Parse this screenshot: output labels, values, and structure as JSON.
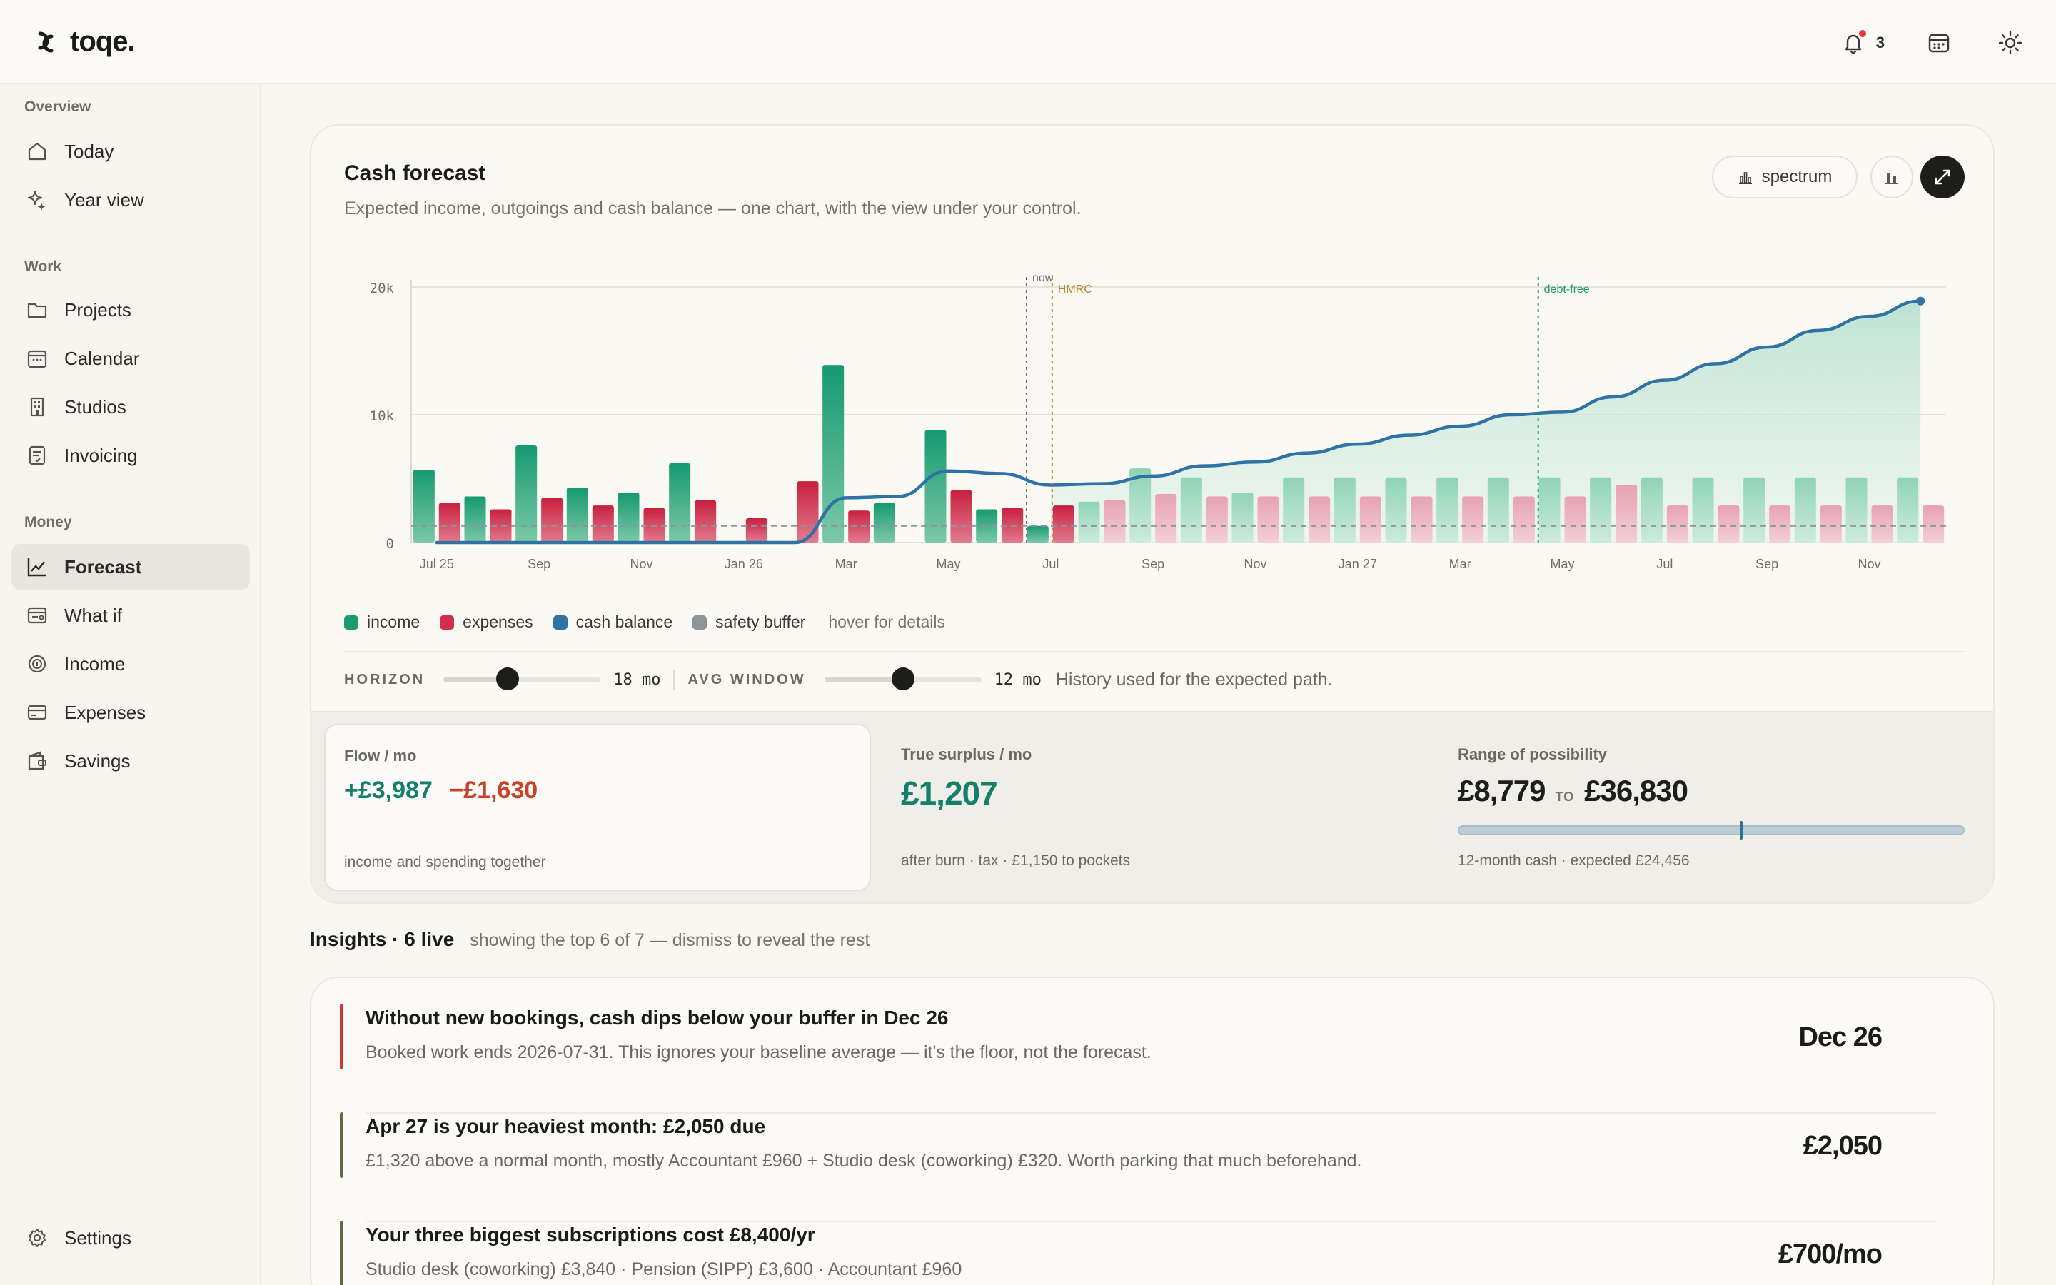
{
  "app": {
    "name": "toqe.",
    "notification_count": "3"
  },
  "sidebar": {
    "sections": [
      {
        "label": "Overview",
        "items": [
          {
            "label": "Today",
            "icon": "home-icon"
          },
          {
            "label": "Year view",
            "icon": "sparkle-icon"
          }
        ]
      },
      {
        "label": "Work",
        "items": [
          {
            "label": "Projects",
            "icon": "folder-icon"
          },
          {
            "label": "Calendar",
            "icon": "calendar-icon"
          },
          {
            "label": "Studios",
            "icon": "building-icon"
          },
          {
            "label": "Invoicing",
            "icon": "invoice-icon"
          }
        ]
      },
      {
        "label": "Money",
        "items": [
          {
            "label": "Forecast",
            "icon": "trend-icon",
            "active": true
          },
          {
            "label": "What if",
            "icon": "whatif-icon"
          },
          {
            "label": "Income",
            "icon": "coin-icon"
          },
          {
            "label": "Expenses",
            "icon": "card-icon"
          },
          {
            "label": "Savings",
            "icon": "wallet-icon"
          }
        ]
      }
    ],
    "settings_label": "Settings"
  },
  "forecast": {
    "title": "Cash forecast",
    "subtitle": "Expected income, outgoings and cash balance — one chart, with the view under your control.",
    "spectrum_label": "spectrum",
    "legend": {
      "income": "income",
      "expenses": "expenses",
      "cash_balance": "cash balance",
      "safety_buffer": "safety buffer",
      "hint": "hover for details"
    },
    "controls": {
      "horizon_label": "HORIZON",
      "horizon_value": "18 mo",
      "horizon_fraction": 0.41,
      "avg_label": "AVG WINDOW",
      "avg_value": "12 mo",
      "avg_fraction": 0.5,
      "note": "History used for the expected path."
    },
    "stats": {
      "flow": {
        "label": "Flow / mo",
        "income": "+£3,987",
        "spend": "−£1,630",
        "foot": "income and spending together"
      },
      "surplus": {
        "label": "True surplus / mo",
        "value": "£1,207",
        "foot": "after burn · tax · £1,150 to pockets"
      },
      "range": {
        "label": "Range of possibility",
        "low": "£8,779",
        "to": "TO",
        "high": "£36,830",
        "expected_value": 24456,
        "low_value": 8779,
        "high_value": 36830,
        "foot": "12-month cash · expected £24,456"
      }
    }
  },
  "chart_data": {
    "type": "bar",
    "xtick_labels": [
      "Jul 25",
      "Sep",
      "Nov",
      "Jan 26",
      "Mar",
      "May",
      "Jul",
      "Sep",
      "Nov",
      "Jan 27",
      "Mar",
      "May",
      "Jul",
      "Sep",
      "Nov"
    ],
    "yticks": [
      "0",
      "10k",
      "20k"
    ],
    "ylim": [
      0,
      20000
    ],
    "months": 30,
    "now_index": 12,
    "series": [
      {
        "name": "income",
        "values": [
          5700,
          3600,
          7600,
          4300,
          3900,
          6200,
          0,
          0,
          13900,
          3100,
          8800,
          2600,
          1300,
          3200,
          5800,
          5100,
          3900,
          5100,
          5100,
          5100,
          5100,
          5100,
          5100,
          5100,
          5100,
          5100,
          5100,
          5100,
          5100,
          5100
        ]
      },
      {
        "name": "expenses",
        "values": [
          3100,
          2600,
          3500,
          2900,
          2700,
          3300,
          1900,
          4800,
          2500,
          0,
          4100,
          2700,
          2900,
          3300,
          3800,
          3600,
          3600,
          3600,
          3600,
          3600,
          3600,
          3600,
          3600,
          4500,
          2900,
          2900,
          2900,
          2900,
          2900,
          2900
        ]
      },
      {
        "name": "cash balance",
        "values": [
          0,
          0,
          0,
          0,
          0,
          0,
          0,
          0,
          3500,
          3600,
          5600,
          5400,
          4500,
          4600,
          5200,
          6000,
          6300,
          7000,
          7700,
          8400,
          9100,
          10000,
          10200,
          11400,
          12700,
          14000,
          15300,
          16600,
          17700,
          18900
        ]
      },
      {
        "name": "safety buffer",
        "values": [
          1300
        ]
      }
    ],
    "annotations": [
      {
        "label": "now",
        "index": 12.0
      },
      {
        "label": "HMRC",
        "index": 12.5
      },
      {
        "label": "debt-free",
        "index": 22.0
      }
    ],
    "colors": {
      "income": "#1b9a74",
      "expenses": "#d12f4f",
      "cash_balance": "#2f73a4",
      "safety_buffer": "#8d949b"
    }
  },
  "insights": {
    "title": "Insights · 6 live",
    "subtitle": "showing the top 6 of 7 — dismiss to reveal the rest",
    "items": [
      {
        "title": "Without new bookings, cash dips below your buffer in Dec 26",
        "desc": "Booked work ends 2026-07-31. This ignores your baseline average — it's the floor, not the forecast.",
        "value": "Dec 26",
        "color": "#c93a36"
      },
      {
        "title": "Apr 27 is your heaviest month: £2,050 due",
        "desc": "£1,320 above a normal month, mostly Accountant £960 + Studio desk (coworking) £320. Worth parking that much beforehand.",
        "value": "£2,050",
        "color": "#5c6a3d"
      },
      {
        "title": "Your three biggest subscriptions cost £8,400/yr",
        "desc": "Studio desk (coworking) £3,840 · Pension (SIPP) £3,600 · Accountant £960",
        "value": "£700/mo",
        "color": "#5c6a3d"
      }
    ]
  }
}
